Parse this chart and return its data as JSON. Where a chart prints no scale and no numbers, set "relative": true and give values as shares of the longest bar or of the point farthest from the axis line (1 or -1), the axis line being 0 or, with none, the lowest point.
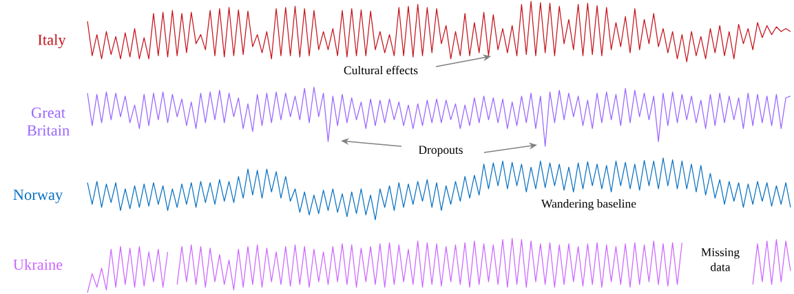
{
  "chart_data": [
    {
      "type": "line",
      "relative": true,
      "annotations": [
        "Cultural effects"
      ],
      "categories": [
        null,
        null,
        null,
        null,
        null,
        null,
        null,
        null,
        null,
        null,
        null,
        null,
        null,
        null,
        null,
        null,
        null,
        null,
        null,
        null,
        null,
        null,
        null,
        null,
        null,
        null,
        null,
        null,
        null,
        null,
        null,
        null,
        null,
        null,
        null,
        null,
        null,
        null,
        null,
        null,
        null,
        null,
        null,
        null,
        null,
        null,
        null,
        null,
        null,
        null,
        null,
        null,
        null,
        null,
        null,
        null,
        null,
        null,
        null,
        null,
        null,
        null,
        null,
        null,
        null,
        null,
        null,
        null,
        null,
        null,
        null,
        null,
        null,
        null,
        null,
        null,
        null,
        null,
        null,
        null,
        null,
        null,
        null,
        null,
        null,
        null,
        null,
        null,
        null,
        null,
        null,
        null,
        null,
        null,
        null,
        null,
        null,
        null,
        null,
        null,
        null,
        null,
        null,
        null,
        null,
        null,
        null,
        null,
        null,
        null,
        null,
        null,
        null,
        null,
        null,
        null,
        null,
        null,
        null,
        null,
        null,
        null,
        null,
        null,
        null,
        null,
        null,
        null,
        null,
        null,
        null,
        null,
        null,
        null,
        null,
        null,
        null,
        null,
        null,
        null,
        null,
        null,
        null,
        null,
        null,
        null,
        null,
        null,
        null,
        null
      ],
      "series": [
        {
          "name": "Italy",
          "color": "#c4131b",
          "values": [
            0.67,
            0.1,
            0.45,
            0.05,
            0.5,
            0.12,
            0.42,
            0.05,
            0.48,
            0.08,
            0.55,
            0.05,
            0.4,
            0.05,
            0.8,
            0.1,
            0.82,
            0.08,
            0.85,
            0.1,
            0.8,
            0.15,
            0.82,
            0.3,
            0.45,
            0.2,
            0.85,
            0.1,
            0.88,
            0.08,
            0.9,
            0.1,
            0.86,
            0.12,
            0.84,
            0.25,
            0.45,
            0.15,
            0.5,
            0.05,
            0.88,
            0.1,
            0.9,
            0.1,
            0.92,
            0.08,
            0.88,
            0.1,
            0.85,
            0.2,
            0.5,
            0.2,
            0.55,
            0.1,
            0.85,
            0.08,
            0.88,
            0.1,
            0.86,
            0.1,
            0.84,
            0.2,
            0.5,
            0.15,
            0.45,
            0.1,
            0.9,
            0.1,
            0.92,
            0.08,
            0.95,
            0.1,
            0.9,
            0.15,
            0.88,
            0.3,
            0.6,
            0.05,
            0.5,
            0.1,
            0.8,
            0.1,
            0.65,
            0.15,
            0.82,
            0.1,
            0.78,
            0.2,
            0.55,
            0.15,
            0.6,
            0.1,
            0.95,
            0.12,
            1.0,
            0.1,
            0.98,
            0.15,
            0.97,
            0.1,
            0.92,
            0.3,
            0.7,
            0.2,
            0.95,
            0.1,
            0.97,
            0.12,
            0.93,
            0.1,
            0.9,
            0.2,
            0.65,
            0.25,
            0.75,
            0.15,
            0.88,
            0.2,
            0.7,
            0.3,
            0.8,
            0.25,
            0.55,
            0.15,
            0.5,
            0.05,
            0.45,
            0.0,
            0.5,
            0.1,
            0.42,
            0.05,
            0.55,
            0.15,
            0.6,
            0.1,
            0.5,
            0.05,
            0.62,
            0.3,
            0.55,
            0.2,
            0.65,
            0.4,
            0.6,
            0.45,
            0.58,
            0.5,
            0.55,
            0.5
          ]
        }
      ]
    },
    {
      "type": "line",
      "relative": true,
      "annotations": [
        "Dropouts"
      ],
      "categories": [
        null,
        null,
        null,
        null,
        null,
        null,
        null,
        null,
        null,
        null,
        null,
        null,
        null,
        null,
        null,
        null,
        null,
        null,
        null,
        null,
        null,
        null,
        null,
        null,
        null,
        null,
        null,
        null,
        null,
        null,
        null,
        null,
        null,
        null,
        null,
        null,
        null,
        null,
        null,
        null,
        null,
        null,
        null,
        null,
        null,
        null,
        null,
        null,
        null,
        null,
        null,
        null,
        null,
        null,
        null,
        null,
        null,
        null,
        null,
        null,
        null,
        null,
        null,
        null,
        null,
        null,
        null,
        null,
        null,
        null,
        null,
        null,
        null,
        null,
        null,
        null,
        null,
        null,
        null,
        null,
        null,
        null,
        null,
        null,
        null,
        null,
        null,
        null,
        null,
        null,
        null,
        null,
        null,
        null,
        null,
        null,
        null,
        null,
        null,
        null,
        null,
        null,
        null,
        null,
        null,
        null,
        null,
        null,
        null,
        null,
        null,
        null,
        null,
        null,
        null,
        null,
        null,
        null,
        null,
        null,
        null,
        null,
        null,
        null,
        null,
        null,
        null,
        null,
        null,
        null,
        null,
        null,
        null,
        null,
        null,
        null,
        null,
        null,
        null,
        null,
        null,
        null,
        null,
        null,
        null,
        null,
        null,
        null,
        null,
        null
      ],
      "series": [
        {
          "name": "Great Britain",
          "color": "#9966ff",
          "values": [
            0.9,
            0.35,
            0.88,
            0.4,
            0.92,
            0.45,
            0.9,
            0.5,
            0.85,
            0.4,
            0.7,
            0.3,
            0.88,
            0.35,
            0.9,
            0.45,
            0.92,
            0.4,
            0.88,
            0.5,
            0.8,
            0.35,
            0.75,
            0.3,
            0.9,
            0.4,
            0.92,
            0.45,
            0.95,
            0.4,
            0.9,
            0.5,
            0.82,
            0.3,
            0.72,
            0.25,
            0.88,
            0.35,
            0.9,
            0.4,
            0.92,
            0.45,
            0.9,
            0.5,
            0.85,
            0.45,
            0.98,
            0.4,
            1.0,
            0.5,
            0.9,
            0.08,
            0.85,
            0.35,
            0.88,
            0.4,
            0.82,
            0.45,
            0.75,
            0.3,
            0.8,
            0.35,
            0.78,
            0.4,
            0.8,
            0.45,
            0.75,
            0.35,
            0.7,
            0.3,
            0.72,
            0.35,
            0.78,
            0.4,
            0.8,
            0.4,
            0.78,
            0.45,
            0.72,
            0.3,
            0.7,
            0.35,
            0.82,
            0.4,
            0.85,
            0.45,
            0.82,
            0.4,
            0.8,
            0.3,
            0.75,
            0.35,
            0.85,
            0.4,
            0.9,
            0.3,
            0.85,
            0.0,
            0.92,
            0.4,
            0.95,
            0.45,
            0.9,
            0.5,
            0.85,
            0.35,
            0.78,
            0.3,
            0.9,
            0.4,
            0.92,
            0.45,
            0.88,
            0.35,
            0.98,
            0.4,
            0.95,
            0.5,
            0.9,
            0.45,
            0.85,
            0.08,
            0.9,
            0.35,
            0.92,
            0.4,
            0.88,
            0.45,
            0.85,
            0.4,
            0.78,
            0.3,
            0.88,
            0.35,
            0.9,
            0.4,
            0.85,
            0.45,
            0.82,
            0.3,
            0.9,
            0.35,
            0.88,
            0.4,
            0.85,
            0.35,
            0.88,
            0.3,
            0.82,
            0.85
          ]
        }
      ]
    },
    {
      "type": "line",
      "relative": true,
      "annotations": [
        "Wandering baseline"
      ],
      "categories": [
        null,
        null,
        null,
        null,
        null,
        null,
        null,
        null,
        null,
        null,
        null,
        null,
        null,
        null,
        null,
        null,
        null,
        null,
        null,
        null,
        null,
        null,
        null,
        null,
        null,
        null,
        null,
        null,
        null,
        null,
        null,
        null,
        null,
        null,
        null,
        null,
        null,
        null,
        null,
        null,
        null,
        null,
        null,
        null,
        null,
        null,
        null,
        null,
        null,
        null,
        null,
        null,
        null,
        null,
        null,
        null,
        null,
        null,
        null,
        null,
        null,
        null,
        null,
        null,
        null,
        null,
        null,
        null,
        null,
        null,
        null,
        null,
        null,
        null,
        null,
        null,
        null,
        null,
        null,
        null,
        null,
        null,
        null,
        null,
        null,
        null,
        null,
        null,
        null,
        null,
        null,
        null,
        null,
        null,
        null,
        null,
        null,
        null,
        null,
        null,
        null,
        null,
        null,
        null,
        null,
        null,
        null,
        null,
        null,
        null,
        null,
        null,
        null,
        null,
        null,
        null,
        null,
        null,
        null,
        null,
        null,
        null,
        null,
        null,
        null,
        null,
        null,
        null,
        null,
        null,
        null,
        null,
        null,
        null,
        null,
        null,
        null,
        null,
        null,
        null,
        null,
        null,
        null,
        null,
        null,
        null,
        null,
        null,
        null,
        null
      ],
      "series": [
        {
          "name": "Norway",
          "color": "#0a72c2",
          "values": [
            0.6,
            0.25,
            0.62,
            0.2,
            0.58,
            0.28,
            0.6,
            0.15,
            0.5,
            0.18,
            0.55,
            0.2,
            0.58,
            0.22,
            0.6,
            0.25,
            0.55,
            0.15,
            0.5,
            0.2,
            0.58,
            0.25,
            0.6,
            0.2,
            0.62,
            0.28,
            0.6,
            0.25,
            0.65,
            0.3,
            0.62,
            0.28,
            0.7,
            0.35,
            0.82,
            0.4,
            0.8,
            0.35,
            0.82,
            0.45,
            0.78,
            0.35,
            0.7,
            0.3,
            0.5,
            0.12,
            0.45,
            0.08,
            0.4,
            0.1,
            0.48,
            0.15,
            0.5,
            0.12,
            0.42,
            0.05,
            0.45,
            0.1,
            0.5,
            0.08,
            0.4,
            0.0,
            0.5,
            0.2,
            0.55,
            0.15,
            0.6,
            0.2,
            0.58,
            0.25,
            0.62,
            0.3,
            0.65,
            0.2,
            0.6,
            0.15,
            0.55,
            0.25,
            0.62,
            0.3,
            0.7,
            0.35,
            0.72,
            0.4,
            0.9,
            0.5,
            0.92,
            0.55,
            0.95,
            0.5,
            0.93,
            0.55,
            0.9,
            0.45,
            0.85,
            0.5,
            0.95,
            0.52,
            0.92,
            0.55,
            0.9,
            0.48,
            0.85,
            0.45,
            0.92,
            0.5,
            0.94,
            0.55,
            0.9,
            0.5,
            0.88,
            0.45,
            0.95,
            0.55,
            0.93,
            0.5,
            0.9,
            0.48,
            0.96,
            0.55,
            0.95,
            0.5,
            1.0,
            0.55,
            0.97,
            0.5,
            0.95,
            0.5,
            0.9,
            0.45,
            0.88,
            0.4,
            0.75,
            0.35,
            0.65,
            0.25,
            0.62,
            0.3,
            0.6,
            0.2,
            0.58,
            0.25,
            0.62,
            0.3,
            0.6,
            0.22,
            0.55,
            0.25,
            0.6,
            0.2
          ]
        }
      ]
    },
    {
      "type": "line",
      "relative": true,
      "annotations": [
        "Missing data"
      ],
      "categories": [
        null,
        null,
        null,
        null,
        null,
        null,
        null,
        null,
        null,
        null,
        null,
        null,
        null,
        null,
        null,
        null,
        null,
        null,
        null,
        null,
        null,
        null,
        null,
        null,
        null,
        null,
        null,
        null,
        null,
        null,
        null,
        null,
        null,
        null,
        null,
        null,
        null,
        null,
        null,
        null,
        null,
        null,
        null,
        null,
        null,
        null,
        null,
        null,
        null,
        null,
        null,
        null,
        null,
        null,
        null,
        null,
        null,
        null,
        null,
        null,
        null,
        null,
        null,
        null,
        null,
        null,
        null,
        null,
        null,
        null,
        null,
        null,
        null,
        null,
        null,
        null,
        null,
        null,
        null,
        null,
        null,
        null,
        null,
        null,
        null,
        null,
        null,
        null,
        null,
        null,
        null,
        null,
        null,
        null,
        null,
        null,
        null,
        null,
        null,
        null,
        null,
        null,
        null,
        null,
        null,
        null,
        null,
        null,
        null,
        null,
        null,
        null,
        null,
        null,
        null,
        null,
        null,
        null,
        null,
        null,
        null,
        null,
        null,
        null,
        null,
        null,
        null,
        null,
        null,
        null,
        null,
        null,
        null,
        null,
        null,
        null,
        null,
        null,
        null,
        null,
        null,
        null,
        null,
        null,
        null,
        null,
        null,
        null,
        null,
        null
      ],
      "series": [
        {
          "name": "Ukraine",
          "color": "#cc66ff",
          "values": [
            0.0,
            0.35,
            0.1,
            0.45,
            0.05,
            0.8,
            0.1,
            0.85,
            0.15,
            0.82,
            0.1,
            0.85,
            0.12,
            0.75,
            0.2,
            0.8,
            0.1,
            0.75,
            null,
            0.15,
            0.85,
            0.2,
            0.88,
            0.15,
            0.85,
            0.1,
            0.82,
            0.2,
            0.7,
            0.15,
            0.6,
            0.05,
            0.8,
            0.1,
            0.85,
            0.15,
            0.88,
            0.1,
            0.82,
            0.2,
            0.75,
            0.15,
            0.85,
            0.12,
            0.88,
            0.15,
            0.85,
            0.1,
            0.8,
            0.2,
            0.75,
            0.15,
            0.85,
            0.2,
            0.9,
            0.15,
            0.88,
            0.1,
            0.82,
            0.2,
            0.85,
            0.15,
            0.9,
            0.1,
            0.92,
            0.15,
            0.88,
            0.2,
            0.8,
            0.15,
            0.95,
            0.1,
            0.92,
            0.15,
            0.9,
            0.12,
            0.85,
            0.2,
            0.88,
            0.15,
            0.92,
            0.1,
            0.95,
            0.15,
            0.9,
            0.2,
            0.88,
            0.15,
            0.98,
            0.1,
            1.0,
            0.15,
            0.98,
            0.1,
            0.95,
            0.2,
            0.9,
            0.15,
            0.92,
            0.1,
            0.88,
            0.15,
            0.9,
            0.2,
            0.85,
            0.12,
            0.9,
            0.15,
            0.92,
            0.1,
            0.88,
            0.2,
            0.85,
            0.15,
            0.9,
            0.1,
            0.92,
            0.15,
            0.88,
            0.2,
            0.95,
            0.15,
            0.9,
            0.12,
            0.92,
            0.15,
            0.92,
            null,
            null,
            null,
            null,
            null,
            null,
            null,
            null,
            null,
            null,
            null,
            null,
            null,
            null,
            0.15,
            0.9,
            0.2,
            0.95,
            0.15,
            0.98,
            0.2,
            0.95,
            0.4
          ]
        }
      ]
    }
  ]
}
